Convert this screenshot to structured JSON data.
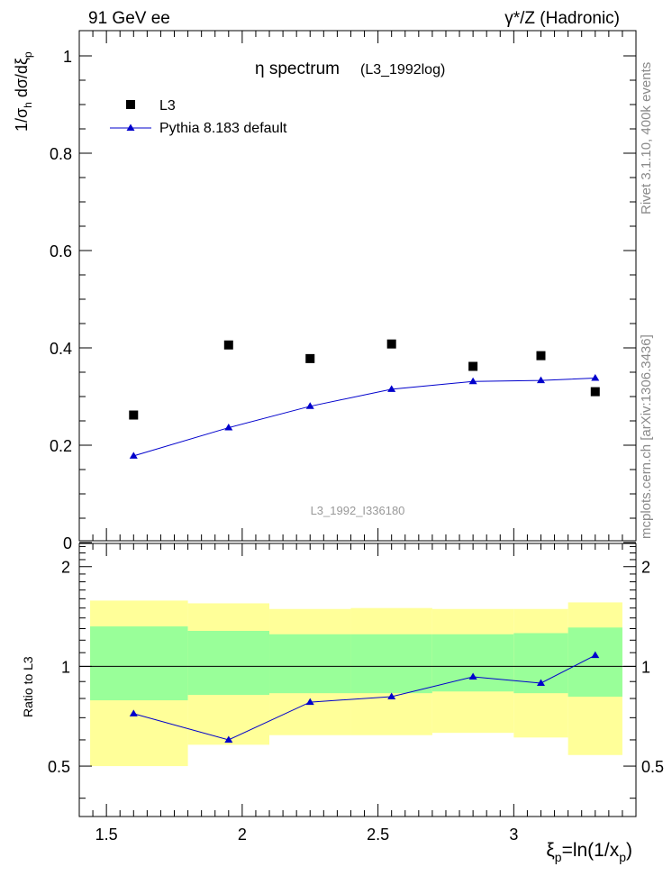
{
  "header": {
    "left": "91 GeV ee",
    "right": "γ*/Z (Hadronic)"
  },
  "side_text": {
    "rivet": "Rivet 3.1.10,  400k events",
    "mcplots": "mcplots.cern.ch [arXiv:1306.3436]"
  },
  "chart_data": [
    {
      "type": "scatter",
      "title": "η spectrum",
      "subtitle": "(L3_1992log)",
      "watermark": "L3_1992_I336180",
      "ylabel": "1/σ_h dσ/dξ_p",
      "ylim": [
        0,
        1.05
      ],
      "y_ticks": [
        0,
        0.2,
        0.4,
        0.6,
        0.8,
        1
      ],
      "y_tick_labels": [
        "0",
        "0.2",
        "0.4",
        "0.6",
        "0.8",
        "1"
      ],
      "xlim": [
        1.4,
        3.45
      ],
      "legend_position": "top-left",
      "series": [
        {
          "name": "L3",
          "marker": "square",
          "color": "#000000",
          "x": [
            1.6,
            1.95,
            2.25,
            2.55,
            2.85,
            3.1,
            3.3
          ],
          "y": [
            0.262,
            0.406,
            0.378,
            0.408,
            0.362,
            0.384,
            0.31
          ]
        },
        {
          "name": "Pythia 8.183 default",
          "marker": "triangle",
          "color": "#0000cc",
          "x": [
            1.6,
            1.95,
            2.25,
            2.55,
            2.85,
            3.1,
            3.3
          ],
          "y": [
            0.178,
            0.236,
            0.28,
            0.315,
            0.331,
            0.333,
            0.338
          ]
        }
      ]
    },
    {
      "type": "line",
      "ylabel": "Ratio to L3",
      "ylim": [
        0.35,
        2.35
      ],
      "y_ticks": [
        0.5,
        1,
        2
      ],
      "y_tick_labels": [
        "0.5",
        "1",
        "2"
      ],
      "xlim": [
        1.4,
        3.45
      ],
      "x_ticks": [
        1.5,
        2,
        2.5,
        3
      ],
      "x_tick_labels": [
        "1.5",
        "2",
        "2.5",
        "3"
      ],
      "xlabel": "ξ_p=ln(1/x_p)",
      "reference_line": 1,
      "bands": {
        "edges": [
          1.4,
          1.8,
          2.1,
          2.4,
          2.7,
          3.0,
          3.2,
          3.4
        ],
        "yellow_upper": [
          1.58,
          1.55,
          1.49,
          1.5,
          1.49,
          1.49,
          1.56
        ],
        "yellow_lower": [
          0.5,
          0.58,
          0.62,
          0.62,
          0.63,
          0.61,
          0.54
        ],
        "green_upper": [
          1.32,
          1.28,
          1.25,
          1.25,
          1.25,
          1.26,
          1.31
        ],
        "green_lower": [
          0.79,
          0.82,
          0.83,
          0.83,
          0.84,
          0.83,
          0.81
        ],
        "yellow_color": "#ffff99",
        "green_color": "#99ff99"
      },
      "series": [
        {
          "name": "Pythia 8.183 default",
          "marker": "triangle",
          "color": "#0000cc",
          "x": [
            1.6,
            1.95,
            2.25,
            2.55,
            2.85,
            3.1,
            3.3
          ],
          "y": [
            0.72,
            0.6,
            0.78,
            0.81,
            0.93,
            0.89,
            1.08
          ]
        }
      ]
    }
  ]
}
